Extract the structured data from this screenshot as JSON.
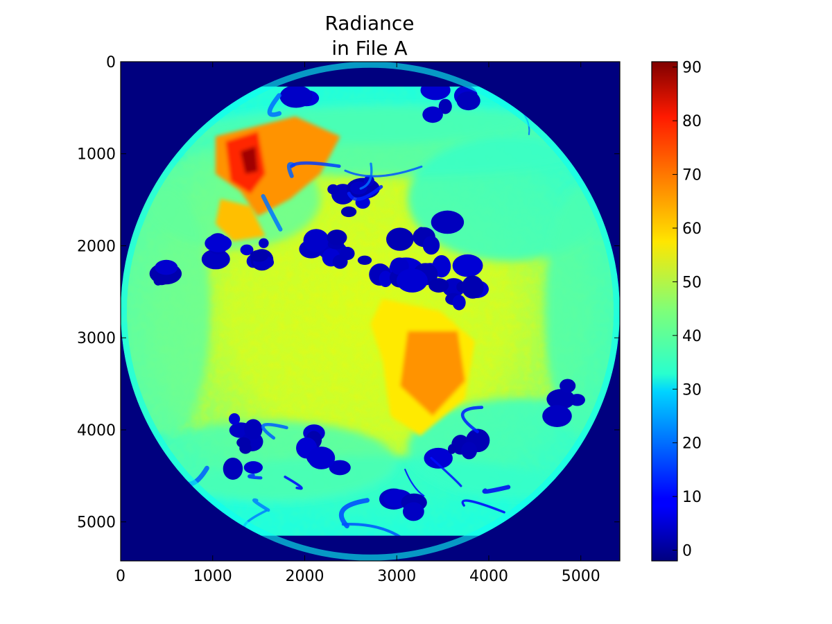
{
  "chart_data": {
    "type": "heatmap",
    "title": [
      "Radiance",
      "in File A"
    ],
    "xlabel": "",
    "ylabel": "",
    "xlim": [
      0,
      5424
    ],
    "ylim": [
      5424,
      0
    ],
    "x_ticks": [
      0,
      1000,
      2000,
      3000,
      4000,
      5000
    ],
    "y_ticks": [
      0,
      1000,
      2000,
      3000,
      4000,
      5000
    ],
    "x_tick_labels": [
      "0",
      "1000",
      "2000",
      "3000",
      "4000",
      "5000"
    ],
    "y_tick_labels": [
      "0",
      "1000",
      "2000",
      "3000",
      "4000",
      "5000"
    ],
    "colorbar": {
      "colormap": "jet",
      "vmin": -2,
      "vmax": 91,
      "ticks": [
        0,
        10,
        20,
        30,
        40,
        50,
        60,
        70,
        80,
        90
      ],
      "tick_labels": [
        "0",
        "10",
        "20",
        "30",
        "40",
        "50",
        "60",
        "70",
        "80",
        "90"
      ]
    },
    "grid": false,
    "image_description_values": {
      "disk_center": [
        2712,
        2712
      ],
      "disk_radius_x": 2712,
      "disk_top_row": 270,
      "disk_bottom_row": 5150,
      "background_value": -2,
      "ocean_value": 52,
      "cloud_value": 2,
      "land_hot_value": 68,
      "peak_value": 88
    }
  },
  "colors": {
    "background": "#ffffff",
    "axis": "#000000"
  }
}
